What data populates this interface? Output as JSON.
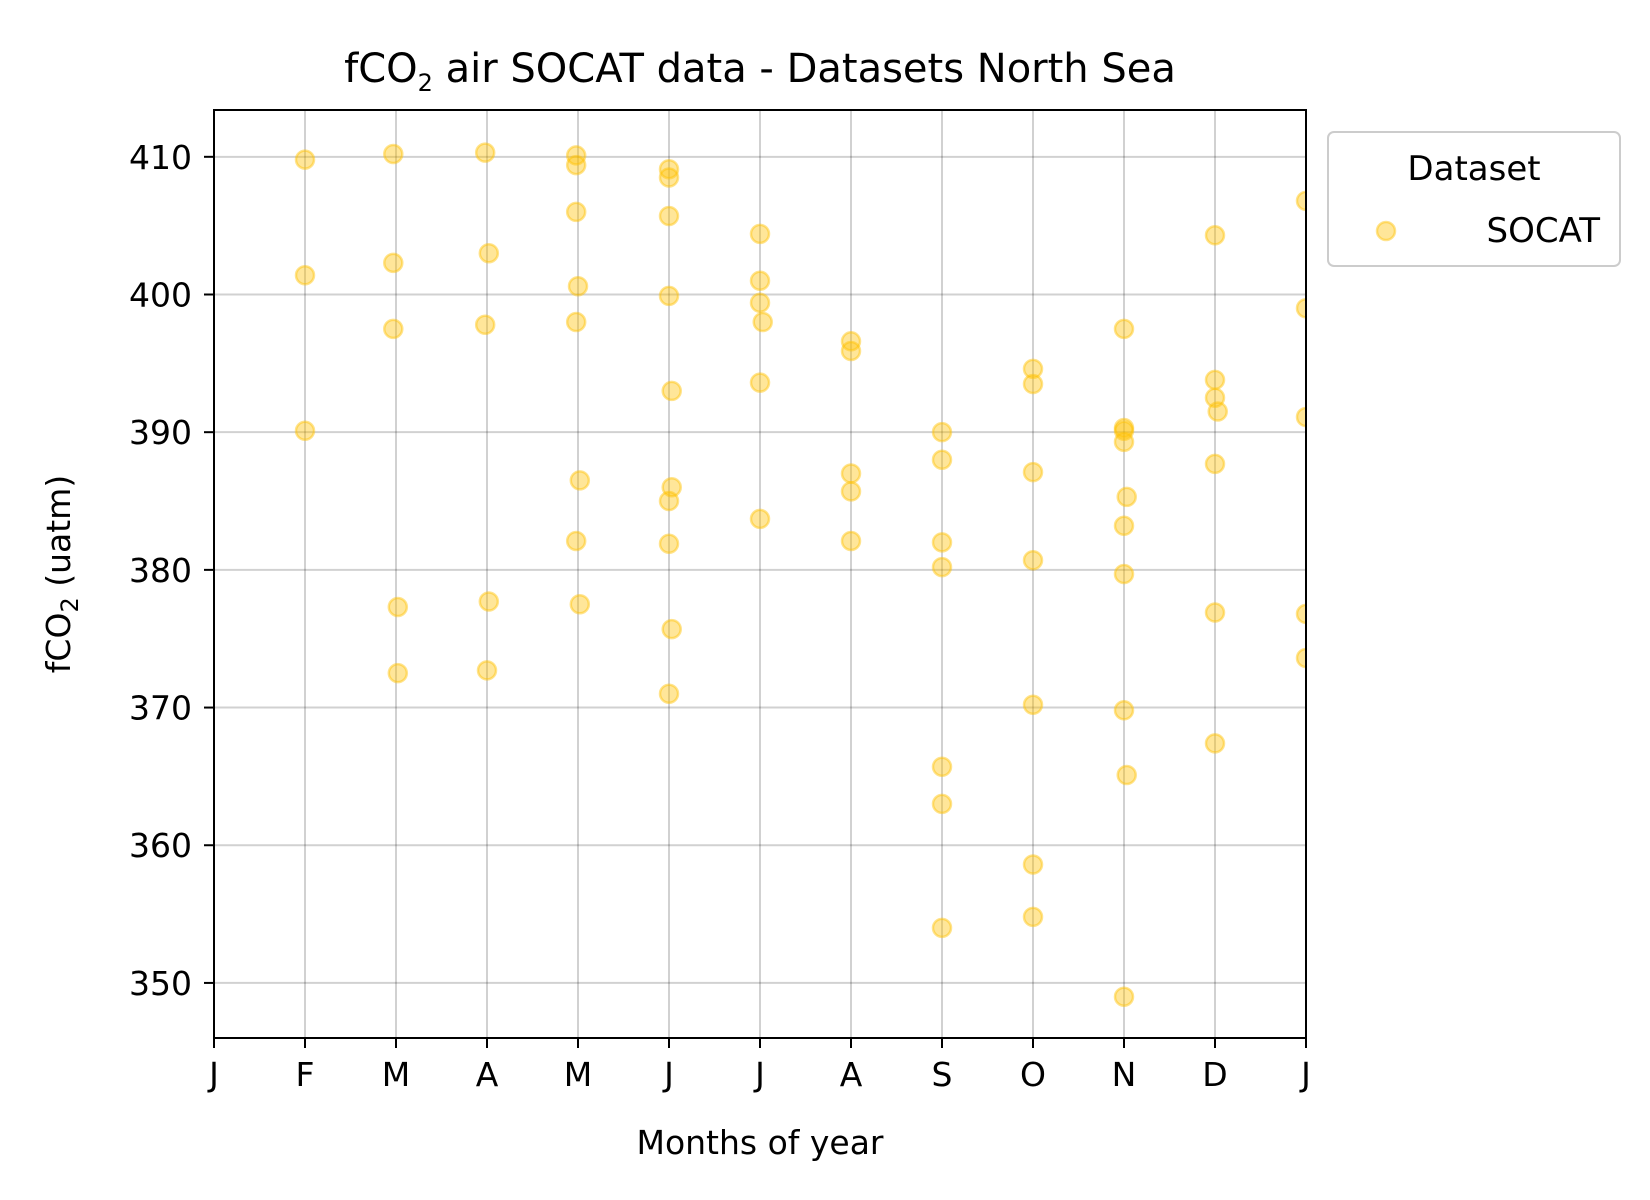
{
  "chart_data": {
    "type": "scatter",
    "title": {
      "pre": "fCO",
      "sub": "2",
      "post": " air SOCAT data - Datasets North Sea"
    },
    "xlabel": "Months of year",
    "ylabel": {
      "pre": "fCO",
      "sub": "2",
      "post": " (uatm)"
    },
    "xlim": [
      0,
      12
    ],
    "ylim": [
      346,
      413.4
    ],
    "x_ticks": [
      {
        "value": 0,
        "label": "J"
      },
      {
        "value": 1,
        "label": "F"
      },
      {
        "value": 2,
        "label": "M"
      },
      {
        "value": 3,
        "label": "A"
      },
      {
        "value": 4,
        "label": "M"
      },
      {
        "value": 5,
        "label": "J"
      },
      {
        "value": 6,
        "label": "J"
      },
      {
        "value": 7,
        "label": "A"
      },
      {
        "value": 8,
        "label": "S"
      },
      {
        "value": 9,
        "label": "O"
      },
      {
        "value": 10,
        "label": "N"
      },
      {
        "value": 11,
        "label": "D"
      },
      {
        "value": 12,
        "label": "J"
      }
    ],
    "y_ticks": [
      {
        "value": 350,
        "label": "350"
      },
      {
        "value": 360,
        "label": "360"
      },
      {
        "value": 370,
        "label": "370"
      },
      {
        "value": 380,
        "label": "380"
      },
      {
        "value": 390,
        "label": "390"
      },
      {
        "value": 400,
        "label": "400"
      },
      {
        "value": 410,
        "label": "410"
      }
    ],
    "grid": true,
    "legend": {
      "title": "Dataset",
      "placement": "outside top-right"
    },
    "series": [
      {
        "name": "SOCAT",
        "color": "#FFC000",
        "points": [
          [
            1.0,
            409.8
          ],
          [
            1.0,
            401.4
          ],
          [
            1.0,
            390.1
          ],
          [
            1.97,
            410.2
          ],
          [
            1.97,
            402.3
          ],
          [
            1.97,
            397.5
          ],
          [
            2.02,
            377.3
          ],
          [
            2.02,
            372.5
          ],
          [
            2.98,
            410.3
          ],
          [
            3.02,
            403.0
          ],
          [
            2.98,
            397.8
          ],
          [
            3.02,
            377.7
          ],
          [
            3.0,
            372.7
          ],
          [
            3.98,
            410.1
          ],
          [
            3.98,
            409.4
          ],
          [
            3.98,
            406.0
          ],
          [
            4.0,
            400.6
          ],
          [
            3.98,
            398.0
          ],
          [
            4.02,
            386.5
          ],
          [
            3.98,
            382.1
          ],
          [
            4.02,
            377.5
          ],
          [
            5.0,
            409.1
          ],
          [
            5.0,
            408.5
          ],
          [
            5.0,
            405.7
          ],
          [
            5.0,
            399.9
          ],
          [
            5.03,
            393.0
          ],
          [
            5.03,
            386.0
          ],
          [
            5.0,
            385.0
          ],
          [
            5.0,
            381.9
          ],
          [
            5.03,
            375.7
          ],
          [
            5.0,
            371.0
          ],
          [
            6.0,
            404.4
          ],
          [
            6.0,
            401.0
          ],
          [
            6.0,
            399.4
          ],
          [
            6.03,
            398.0
          ],
          [
            6.0,
            393.6
          ],
          [
            6.0,
            383.7
          ],
          [
            7.0,
            396.6
          ],
          [
            7.0,
            395.9
          ],
          [
            7.0,
            387.0
          ],
          [
            7.0,
            385.7
          ],
          [
            7.0,
            382.1
          ],
          [
            8.0,
            390.0
          ],
          [
            8.0,
            388.0
          ],
          [
            8.0,
            382.0
          ],
          [
            8.0,
            380.2
          ],
          [
            8.0,
            365.7
          ],
          [
            8.0,
            363.0
          ],
          [
            8.0,
            354.0
          ],
          [
            9.0,
            394.6
          ],
          [
            9.0,
            393.5
          ],
          [
            9.0,
            387.1
          ],
          [
            9.0,
            380.7
          ],
          [
            9.0,
            370.2
          ],
          [
            9.0,
            358.6
          ],
          [
            9.0,
            354.8
          ],
          [
            10.0,
            397.5
          ],
          [
            10.0,
            390.3
          ],
          [
            10.0,
            390.1
          ],
          [
            10.0,
            389.3
          ],
          [
            10.03,
            385.3
          ],
          [
            10.0,
            383.2
          ],
          [
            10.0,
            379.7
          ],
          [
            10.0,
            369.8
          ],
          [
            10.03,
            365.1
          ],
          [
            10.0,
            349.0
          ],
          [
            11.0,
            404.3
          ],
          [
            11.0,
            393.8
          ],
          [
            11.0,
            392.5
          ],
          [
            11.03,
            391.5
          ],
          [
            11.0,
            387.7
          ],
          [
            11.0,
            376.9
          ],
          [
            11.0,
            367.4
          ],
          [
            12.0,
            406.8
          ],
          [
            12.0,
            399.0
          ],
          [
            12.0,
            391.1
          ],
          [
            12.0,
            376.8
          ],
          [
            12.0,
            373.6
          ]
        ]
      }
    ]
  }
}
